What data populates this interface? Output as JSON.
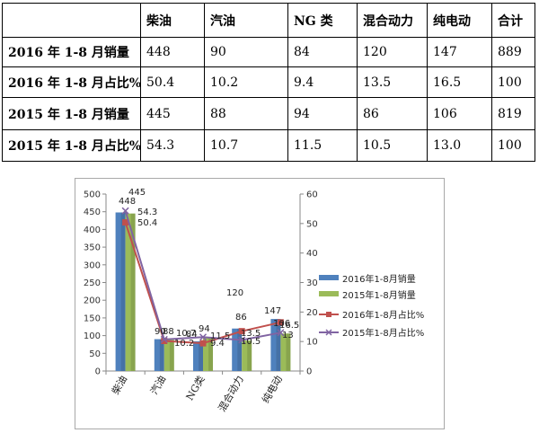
{
  "table": {
    "headers": [
      "",
      "柴油",
      "汽油",
      "NG 类",
      "混合动力",
      "纯电动",
      "合计"
    ],
    "rows": [
      [
        "2016 年 1-8 月销量",
        "448",
        "90",
        "84",
        "120",
        "147",
        "889"
      ],
      [
        "2016 年 1-8 月占比%",
        "50.4",
        "10.2",
        "9.4",
        "13.5",
        "16.5",
        "100"
      ],
      [
        "2015 年 1-8 月销量",
        "445",
        "88",
        "94",
        "86",
        "106",
        "819"
      ],
      [
        "2015 年 1-8 月占比%",
        "54.3",
        "10.7",
        "11.5",
        "10.5",
        "13.0",
        "100"
      ]
    ]
  },
  "chart_data": {
    "type": "bar",
    "categories": [
      "柴油",
      "汽油",
      "NG类",
      "混合动力",
      "纯电动"
    ],
    "y_left": {
      "ylim": [
        0,
        500
      ],
      "ticks": [
        "0",
        "50",
        "100",
        "150",
        "200",
        "250",
        "300",
        "350",
        "400",
        "450",
        "500"
      ]
    },
    "y_right": {
      "ylim": [
        0,
        60
      ],
      "ticks": [
        "0",
        "10",
        "20",
        "30",
        "40",
        "50",
        "60"
      ]
    },
    "series": [
      {
        "name": "2016年1-8月销量",
        "kind": "bar",
        "axis": "left",
        "color": "#4f81bd",
        "values": [
          448,
          90,
          84,
          120,
          147
        ],
        "labels": [
          "448",
          "90",
          "84",
          "120",
          "147"
        ]
      },
      {
        "name": "2015年1-8月销量",
        "kind": "bar",
        "axis": "left",
        "color": "#9bbb59",
        "values": [
          445,
          88,
          94,
          86,
          106
        ],
        "labels": [
          "445",
          "88",
          "94",
          "86",
          "106"
        ]
      },
      {
        "name": "2016年1-8月占比%",
        "kind": "line",
        "axis": "right",
        "color": "#c0504d",
        "marker": "square",
        "values": [
          50.4,
          10.2,
          9.4,
          13.5,
          16.5
        ],
        "labels": [
          "50.4",
          "10.2",
          "9.4",
          "13.5",
          "16.5"
        ]
      },
      {
        "name": "2015年1-8月占比%",
        "kind": "line",
        "axis": "right",
        "color": "#8064a2",
        "marker": "x",
        "values": [
          54.3,
          10.7,
          11.5,
          10.5,
          13.0
        ],
        "labels": [
          "54.3",
          "10.7",
          "11.5",
          "10.5",
          "13"
        ]
      }
    ],
    "legend_position": "right",
    "grid": false
  }
}
